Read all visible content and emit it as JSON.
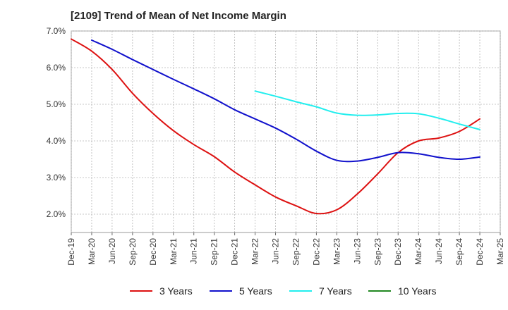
{
  "chart_data": {
    "type": "line",
    "title": "[2109]  Trend of Mean of Net Income Margin",
    "y_ticks": [
      "7.0%",
      "6.0%",
      "5.0%",
      "4.0%",
      "3.0%",
      "2.0%"
    ],
    "ylim": [
      1.5,
      7.0
    ],
    "x_ticks": [
      "Dec-19",
      "Mar-20",
      "Jun-20",
      "Sep-20",
      "Dec-20",
      "Mar-21",
      "Jun-21",
      "Sep-21",
      "Dec-21",
      "Mar-22",
      "Jun-22",
      "Sep-22",
      "Dec-22",
      "Mar-23",
      "Jun-23",
      "Sep-23",
      "Dec-23",
      "Mar-24",
      "Jun-24",
      "Sep-24",
      "Dec-24",
      "Mar-25"
    ],
    "grid": true,
    "legend_position": "bottom",
    "series": [
      {
        "name": "3 Years",
        "color": "#dd1111",
        "x": [
          "Dec-19",
          "Mar-20",
          "Jun-20",
          "Sep-20",
          "Dec-20",
          "Mar-21",
          "Jun-21",
          "Sep-21",
          "Dec-21",
          "Mar-22",
          "Jun-22",
          "Sep-22",
          "Dec-22",
          "Mar-23",
          "Jun-23",
          "Sep-23",
          "Dec-23",
          "Mar-24",
          "Jun-24",
          "Sep-24",
          "Dec-24"
        ],
        "values": [
          6.78,
          6.45,
          5.95,
          5.3,
          4.75,
          4.28,
          3.9,
          3.57,
          3.15,
          2.8,
          2.47,
          2.23,
          2.02,
          2.12,
          2.55,
          3.1,
          3.68,
          4.0,
          4.08,
          4.26,
          4.6
        ]
      },
      {
        "name": "5 Years",
        "color": "#1111cc",
        "x": [
          "Mar-20",
          "Jun-20",
          "Sep-20",
          "Dec-20",
          "Mar-21",
          "Jun-21",
          "Sep-21",
          "Dec-21",
          "Mar-22",
          "Jun-22",
          "Sep-22",
          "Dec-22",
          "Mar-23",
          "Jun-23",
          "Sep-23",
          "Dec-23",
          "Mar-24",
          "Jun-24",
          "Sep-24",
          "Dec-24"
        ],
        "values": [
          6.75,
          6.5,
          6.22,
          5.95,
          5.68,
          5.42,
          5.15,
          4.85,
          4.6,
          4.35,
          4.05,
          3.72,
          3.47,
          3.45,
          3.55,
          3.68,
          3.65,
          3.55,
          3.5,
          3.56
        ]
      },
      {
        "name": "7 Years",
        "color": "#22eeee",
        "x": [
          "Mar-22",
          "Jun-22",
          "Sep-22",
          "Dec-22",
          "Mar-23",
          "Jun-23",
          "Sep-23",
          "Dec-23",
          "Mar-24",
          "Jun-24",
          "Sep-24",
          "Dec-24"
        ],
        "values": [
          5.36,
          5.22,
          5.07,
          4.93,
          4.76,
          4.7,
          4.71,
          4.75,
          4.74,
          4.62,
          4.46,
          4.31
        ]
      },
      {
        "name": "10 Years",
        "color": "#228822",
        "x": [],
        "values": []
      }
    ]
  }
}
